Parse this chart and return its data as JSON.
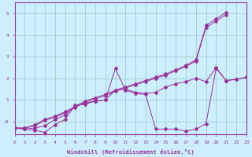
{
  "xlabel": "Windchill (Refroidissement éolien,°C)",
  "background_color": "#cceeff",
  "grid_color": "#99ccbb",
  "line_color": "#993399",
  "xmin": 0,
  "xmax": 23,
  "ymin": -0.6,
  "ymax": 5.5,
  "yticks": [
    0,
    1,
    2,
    3,
    4,
    5
  ],
  "ytick_labels": [
    "-0",
    "1",
    "2",
    "3",
    "4",
    "5"
  ],
  "xticks": [
    0,
    1,
    2,
    3,
    4,
    5,
    6,
    7,
    8,
    9,
    10,
    11,
    12,
    13,
    14,
    15,
    16,
    17,
    18,
    19,
    20,
    21,
    22,
    23
  ],
  "lines": [
    {
      "x": [
        0,
        1,
        2,
        3,
        4,
        5,
        6,
        7,
        8,
        9,
        10,
        11,
        12,
        13,
        14,
        15,
        16,
        17,
        18,
        19,
        20,
        21
      ],
      "y": [
        -0.3,
        -0.3,
        -0.15,
        0.1,
        0.25,
        0.45,
        0.7,
        0.95,
        1.1,
        1.25,
        1.45,
        1.6,
        1.75,
        1.9,
        2.05,
        2.2,
        2.4,
        2.6,
        2.85,
        4.45,
        4.75,
        5.05
      ]
    },
    {
      "x": [
        0,
        1,
        2,
        3,
        4,
        5,
        6,
        7,
        8,
        9,
        10,
        11,
        12,
        13,
        14,
        15,
        16,
        17,
        18,
        19,
        20,
        21,
        22,
        23
      ],
      "y": [
        -0.3,
        -0.35,
        -0.4,
        -0.5,
        -0.15,
        0.1,
        0.75,
        0.8,
        0.95,
        1.0,
        2.45,
        1.45,
        1.3,
        1.25,
        -0.35,
        -0.35,
        -0.35,
        -0.45,
        -0.35,
        -0.1,
        2.45,
        1.9,
        1.95,
        2.05
      ]
    },
    {
      "x": [
        0,
        1,
        2,
        3,
        4,
        5,
        6,
        7,
        8,
        9,
        10,
        11,
        12,
        13,
        14,
        15,
        16,
        17,
        18,
        19,
        20,
        21
      ],
      "y": [
        -0.3,
        -0.3,
        -0.2,
        0.05,
        0.2,
        0.4,
        0.65,
        0.9,
        1.05,
        1.2,
        1.4,
        1.55,
        1.7,
        1.85,
        2.0,
        2.15,
        2.35,
        2.55,
        2.8,
        4.35,
        4.65,
        4.95
      ]
    },
    {
      "x": [
        0,
        1,
        2,
        3,
        4,
        5,
        6,
        7,
        8,
        9,
        10,
        11,
        12,
        13,
        14,
        15,
        16,
        17,
        18,
        19,
        20,
        21,
        22,
        23
      ],
      "y": [
        -0.3,
        -0.35,
        -0.3,
        -0.2,
        0.1,
        0.3,
        0.7,
        0.85,
        0.95,
        1.0,
        1.45,
        1.5,
        1.35,
        1.3,
        1.35,
        1.6,
        1.75,
        1.85,
        2.0,
        1.85,
        2.5,
        1.9,
        1.95,
        2.05
      ]
    }
  ]
}
